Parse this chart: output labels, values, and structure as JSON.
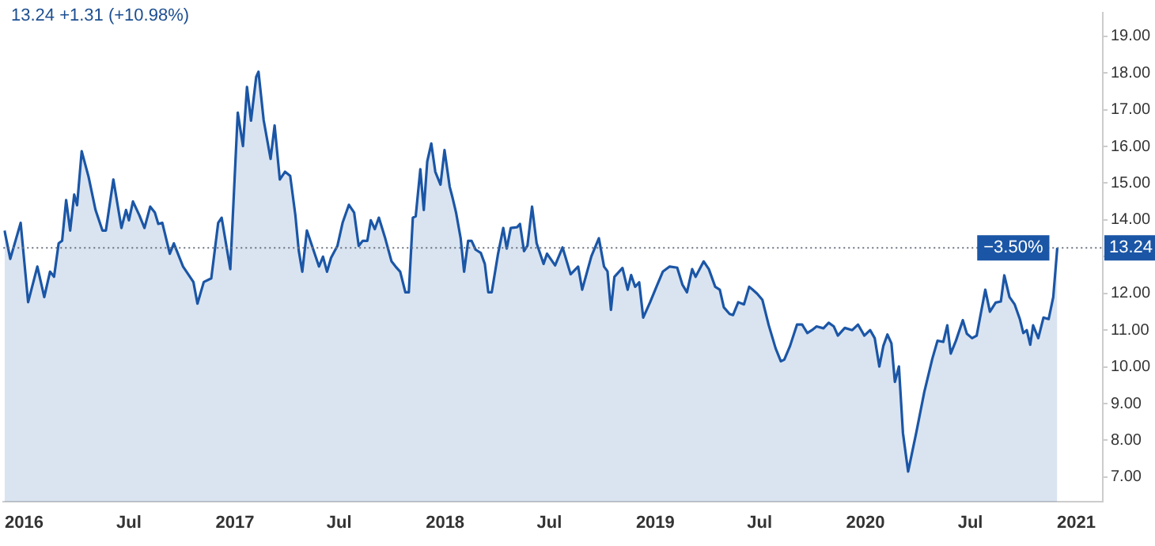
{
  "chart_data": {
    "type": "area",
    "title": "13.24 +1.31 (+10.98%)",
    "x": [
      "2015-11-28",
      "2015-12-08",
      "2015-12-26",
      "2016-01-08",
      "2016-01-24",
      "2016-02-05",
      "2016-02-15",
      "2016-02-22",
      "2016-03-01",
      "2016-03-07",
      "2016-03-14",
      "2016-03-21",
      "2016-03-28",
      "2016-04-02",
      "2016-04-10",
      "2016-04-22",
      "2016-05-04",
      "2016-05-16",
      "2016-05-22",
      "2016-06-04",
      "2016-06-18",
      "2016-06-26",
      "2016-07-01",
      "2016-07-08",
      "2016-07-19",
      "2016-07-28",
      "2016-08-07",
      "2016-08-15",
      "2016-08-21",
      "2016-08-28",
      "2016-09-10",
      "2016-09-17",
      "2016-10-03",
      "2016-10-21",
      "2016-10-28",
      "2016-11-08",
      "2016-11-21",
      "2016-12-03",
      "2016-12-09",
      "2016-12-24",
      "2017-01-06",
      "2017-01-15",
      "2017-01-22",
      "2017-01-29",
      "2017-02-07",
      "2017-02-11",
      "2017-02-20",
      "2017-03-04",
      "2017-03-11",
      "2017-03-20",
      "2017-03-29",
      "2017-04-07",
      "2017-04-16",
      "2017-04-22",
      "2017-04-28",
      "2017-05-06",
      "2017-05-15",
      "2017-05-27",
      "2017-06-03",
      "2017-06-10",
      "2017-06-17",
      "2017-06-28",
      "2017-07-07",
      "2017-07-18",
      "2017-07-27",
      "2017-08-04",
      "2017-08-11",
      "2017-08-19",
      "2017-08-25",
      "2017-09-01",
      "2017-09-08",
      "2017-09-19",
      "2017-09-30",
      "2017-10-07",
      "2017-10-15",
      "2017-10-24",
      "2017-10-30",
      "2017-11-06",
      "2017-11-11",
      "2017-11-19",
      "2017-11-25",
      "2017-12-01",
      "2017-12-08",
      "2017-12-15",
      "2017-12-24",
      "2017-12-31",
      "2018-01-09",
      "2018-01-14",
      "2018-01-20",
      "2018-01-28",
      "2018-02-03",
      "2018-02-10",
      "2018-02-16",
      "2018-02-23",
      "2018-03-04",
      "2018-03-11",
      "2018-03-17",
      "2018-03-23",
      "2018-04-03",
      "2018-04-12",
      "2018-04-18",
      "2018-04-25",
      "2018-05-06",
      "2018-05-11",
      "2018-05-18",
      "2018-05-24",
      "2018-06-01",
      "2018-06-09",
      "2018-06-21",
      "2018-06-27",
      "2018-07-11",
      "2018-07-24",
      "2018-08-07",
      "2018-08-20",
      "2018-08-27",
      "2018-09-12",
      "2018-09-25",
      "2018-10-04",
      "2018-10-10",
      "2018-10-16",
      "2018-10-22",
      "2018-11-05",
      "2018-11-14",
      "2018-11-20",
      "2018-11-27",
      "2018-12-04",
      "2018-12-11",
      "2018-12-23",
      "2019-01-03",
      "2019-01-14",
      "2019-01-26",
      "2019-02-08",
      "2019-02-17",
      "2019-02-25",
      "2019-03-06",
      "2019-03-12",
      "2019-03-26",
      "2019-04-04",
      "2019-04-15",
      "2019-04-23",
      "2019-04-30",
      "2019-05-10",
      "2019-05-16",
      "2019-05-25",
      "2019-06-04",
      "2019-06-13",
      "2019-06-19",
      "2019-06-27",
      "2019-07-06",
      "2019-07-17",
      "2019-07-29",
      "2019-08-07",
      "2019-08-13",
      "2019-08-23",
      "2019-09-04",
      "2019-09-13",
      "2019-09-22",
      "2019-09-30",
      "2019-10-08",
      "2019-10-20",
      "2019-10-29",
      "2019-11-07",
      "2019-11-14",
      "2019-11-26",
      "2019-12-09",
      "2019-12-19",
      "2019-12-30",
      "2020-01-09",
      "2020-01-17",
      "2020-01-25",
      "2020-02-01",
      "2020-02-08",
      "2020-02-15",
      "2020-02-21",
      "2020-02-28",
      "2020-03-06",
      "2020-03-15",
      "2020-03-29",
      "2020-04-12",
      "2020-04-26",
      "2020-05-05",
      "2020-05-15",
      "2020-05-22",
      "2020-05-28",
      "2020-06-06",
      "2020-06-18",
      "2020-06-25",
      "2020-07-04",
      "2020-07-12",
      "2020-07-21",
      "2020-07-27",
      "2020-08-04",
      "2020-08-14",
      "2020-08-23",
      "2020-08-29",
      "2020-09-07",
      "2020-09-16",
      "2020-09-25",
      "2020-10-01",
      "2020-10-07",
      "2020-10-13",
      "2020-10-18",
      "2020-10-27",
      "2020-11-05",
      "2020-11-14",
      "2020-11-22",
      "2020-11-29"
    ],
    "series": [
      {
        "color": "#1b56a6",
        "values": [
          13.71,
          12.94,
          13.92,
          11.76,
          12.73,
          11.9,
          12.59,
          12.45,
          13.36,
          13.43,
          14.54,
          13.71,
          14.69,
          14.4,
          15.87,
          15.17,
          14.27,
          13.71,
          13.71,
          15.1,
          13.78,
          14.27,
          13.99,
          14.5,
          14.13,
          13.78,
          14.36,
          14.2,
          13.89,
          13.92,
          13.08,
          13.36,
          12.73,
          12.31,
          11.72,
          12.31,
          12.41,
          13.92,
          14.06,
          12.66,
          16.92,
          16.01,
          17.62,
          16.7,
          17.89,
          18.03,
          16.71,
          15.66,
          16.57,
          15.1,
          15.31,
          15.2,
          14.13,
          13.15,
          12.59,
          13.71,
          13.29,
          12.73,
          13.0,
          12.59,
          12.97,
          13.29,
          13.92,
          14.41,
          14.2,
          13.29,
          13.43,
          13.43,
          13.99,
          13.75,
          14.06,
          13.5,
          12.87,
          12.73,
          12.59,
          12.03,
          12.03,
          14.06,
          14.1,
          15.38,
          14.27,
          15.59,
          16.08,
          15.31,
          14.96,
          15.9,
          14.9,
          14.6,
          14.2,
          13.5,
          12.59,
          13.43,
          13.43,
          13.19,
          13.1,
          12.8,
          12.03,
          12.03,
          13.08,
          13.78,
          13.22,
          13.78,
          13.8,
          13.89,
          13.15,
          13.3,
          14.36,
          13.36,
          12.8,
          13.08,
          12.76,
          13.25,
          12.52,
          12.73,
          12.1,
          13.01,
          13.5,
          12.73,
          12.6,
          11.55,
          12.45,
          12.69,
          12.1,
          12.5,
          12.18,
          12.3,
          11.34,
          11.76,
          12.18,
          12.59,
          12.73,
          12.7,
          12.24,
          12.03,
          12.66,
          12.45,
          12.87,
          12.66,
          12.18,
          12.1,
          11.62,
          11.44,
          11.41,
          11.76,
          11.7,
          12.18,
          12.1,
          11.99,
          11.82,
          11.13,
          10.5,
          10.15,
          10.2,
          10.57,
          11.15,
          11.15,
          10.92,
          11.0,
          11.1,
          11.05,
          11.2,
          11.1,
          10.85,
          11.06,
          11.0,
          11.15,
          10.85,
          11.0,
          10.78,
          10.01,
          10.57,
          10.88,
          10.64,
          9.59,
          10.01,
          8.2,
          7.15,
          8.2,
          9.31,
          10.22,
          10.71,
          10.68,
          11.13,
          10.36,
          10.71,
          11.27,
          10.9,
          10.78,
          10.85,
          11.6,
          12.1,
          11.5,
          11.75,
          11.78,
          12.49,
          11.9,
          11.7,
          11.3,
          10.92,
          11.0,
          10.6,
          11.13,
          10.78,
          11.34,
          11.3,
          11.9,
          13.24
        ]
      }
    ],
    "xlim": [
      "2015-11-26",
      "2021-02-16"
    ],
    "xticks": [
      {
        "value": "2016-01-01",
        "label": "2016"
      },
      {
        "value": "2016-07-01",
        "label": "Jul"
      },
      {
        "value": "2017-01-01",
        "label": "2017"
      },
      {
        "value": "2017-07-01",
        "label": "Jul"
      },
      {
        "value": "2018-01-01",
        "label": "2018"
      },
      {
        "value": "2018-07-01",
        "label": "Jul"
      },
      {
        "value": "2019-01-01",
        "label": "2019"
      },
      {
        "value": "2019-07-01",
        "label": "Jul"
      },
      {
        "value": "2020-01-01",
        "label": "2020"
      },
      {
        "value": "2020-07-01",
        "label": "Jul"
      },
      {
        "value": "2021-01-01",
        "label": "2021"
      }
    ],
    "ylim": [
      6.33,
      19.64
    ],
    "yticks": [
      {
        "value": 7,
        "label": "7.00"
      },
      {
        "value": 8,
        "label": "8.00"
      },
      {
        "value": 9,
        "label": "9.00"
      },
      {
        "value": 10,
        "label": "10.00"
      },
      {
        "value": 11,
        "label": "11.00"
      },
      {
        "value": 12,
        "label": "12.00"
      },
      {
        "value": 13,
        "label": null
      },
      {
        "value": 14,
        "label": "14.00"
      },
      {
        "value": 15,
        "label": "15.00"
      },
      {
        "value": 16,
        "label": "16.00"
      },
      {
        "value": 17,
        "label": "17.00"
      },
      {
        "value": 18,
        "label": "18.00"
      },
      {
        "value": 19,
        "label": "19.00"
      }
    ],
    "ref_lines": [
      {
        "axis": "y",
        "value": 13.24,
        "label": "13.24",
        "color": "#6b7280",
        "line_style": "dotted"
      }
    ],
    "annotations": [
      "−3.50%"
    ],
    "grid": false,
    "legend": false,
    "marker": "none",
    "line_style": "solid"
  }
}
